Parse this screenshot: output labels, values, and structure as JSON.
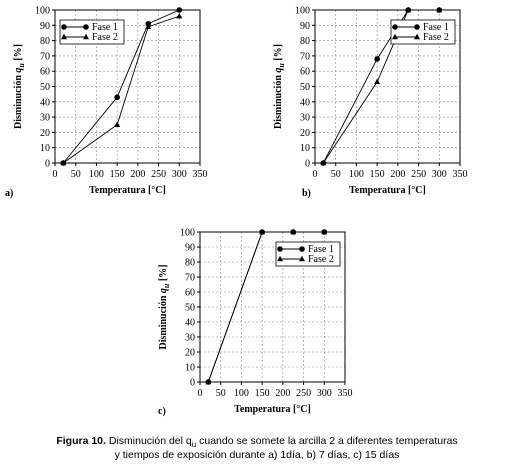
{
  "chart_data": [
    {
      "type": "line",
      "panel": "a)",
      "x_label": "Temperatura [°C]",
      "y_label": {
        "text": "Disminución",
        "var": "q",
        "sub": "u",
        "unit": "[%]"
      },
      "xlim": [
        0,
        350
      ],
      "xticks": [
        0,
        50,
        100,
        150,
        200,
        250,
        300,
        350
      ],
      "ylim": [
        0,
        100
      ],
      "yticks": [
        0,
        10,
        20,
        30,
        40,
        50,
        60,
        70,
        80,
        90,
        100
      ],
      "grid": true,
      "legend": "upper left",
      "series": [
        {
          "name": "Fase 1",
          "color": "#000000",
          "marker": "circle",
          "x": [
            20,
            150,
            225,
            300
          ],
          "values": [
            0,
            43,
            91,
            100
          ]
        },
        {
          "name": "Fase 2",
          "color": "#000000",
          "marker": "triangle",
          "x": [
            20,
            150,
            225,
            300
          ],
          "values": [
            0,
            25,
            89,
            96
          ]
        }
      ]
    },
    {
      "type": "line",
      "panel": "b)",
      "x_label": "Temperatura [°C]",
      "y_label": {
        "text": "Disminución",
        "var": "q",
        "sub": "u",
        "unit": "[%]"
      },
      "xlim": [
        0,
        350
      ],
      "xticks": [
        0,
        50,
        100,
        150,
        200,
        250,
        300,
        350
      ],
      "ylim": [
        0,
        100
      ],
      "yticks": [
        0,
        10,
        20,
        30,
        40,
        50,
        60,
        70,
        80,
        90,
        100
      ],
      "grid": true,
      "legend": "upper right",
      "series": [
        {
          "name": "Fase 1",
          "color": "#000000",
          "marker": "circle",
          "x": [
            20,
            150,
            225,
            300
          ],
          "values": [
            0,
            68,
            100,
            100
          ]
        },
        {
          "name": "Fase 2",
          "color": "#000000",
          "marker": "triangle",
          "x": [
            20,
            150,
            225,
            300
          ],
          "values": [
            0,
            53,
            100,
            100
          ]
        }
      ]
    },
    {
      "type": "line",
      "panel": "c)",
      "x_label": "Temperatura [°C]",
      "y_label": {
        "text": "Disminución",
        "var": "q",
        "sub": "u",
        "unit": "[%]"
      },
      "xlim": [
        0,
        350
      ],
      "xticks": [
        0,
        50,
        100,
        150,
        200,
        250,
        300,
        350
      ],
      "ylim": [
        0,
        100
      ],
      "yticks": [
        0,
        10,
        20,
        30,
        40,
        50,
        60,
        70,
        80,
        90,
        100
      ],
      "grid": true,
      "legend": "upper right",
      "series": [
        {
          "name": "Fase 1",
          "color": "#000000",
          "marker": "circle",
          "x": [
            20,
            150,
            225,
            300
          ],
          "values": [
            0,
            100,
            100,
            100
          ]
        },
        {
          "name": "Fase 2",
          "color": "#000000",
          "marker": "triangle",
          "x": [
            20,
            150,
            225,
            300
          ],
          "values": [
            0,
            100,
            100,
            100
          ]
        }
      ]
    }
  ],
  "caption": {
    "label": "Figura 10.",
    "text": "Disminución del q",
    "sub": "u",
    "rest": "cuando se somete la arcilla 2 a diferentes temperaturas",
    "line2": "y tiempos de exposición durante a) 1día, b) 7 días, c) 15 días"
  }
}
